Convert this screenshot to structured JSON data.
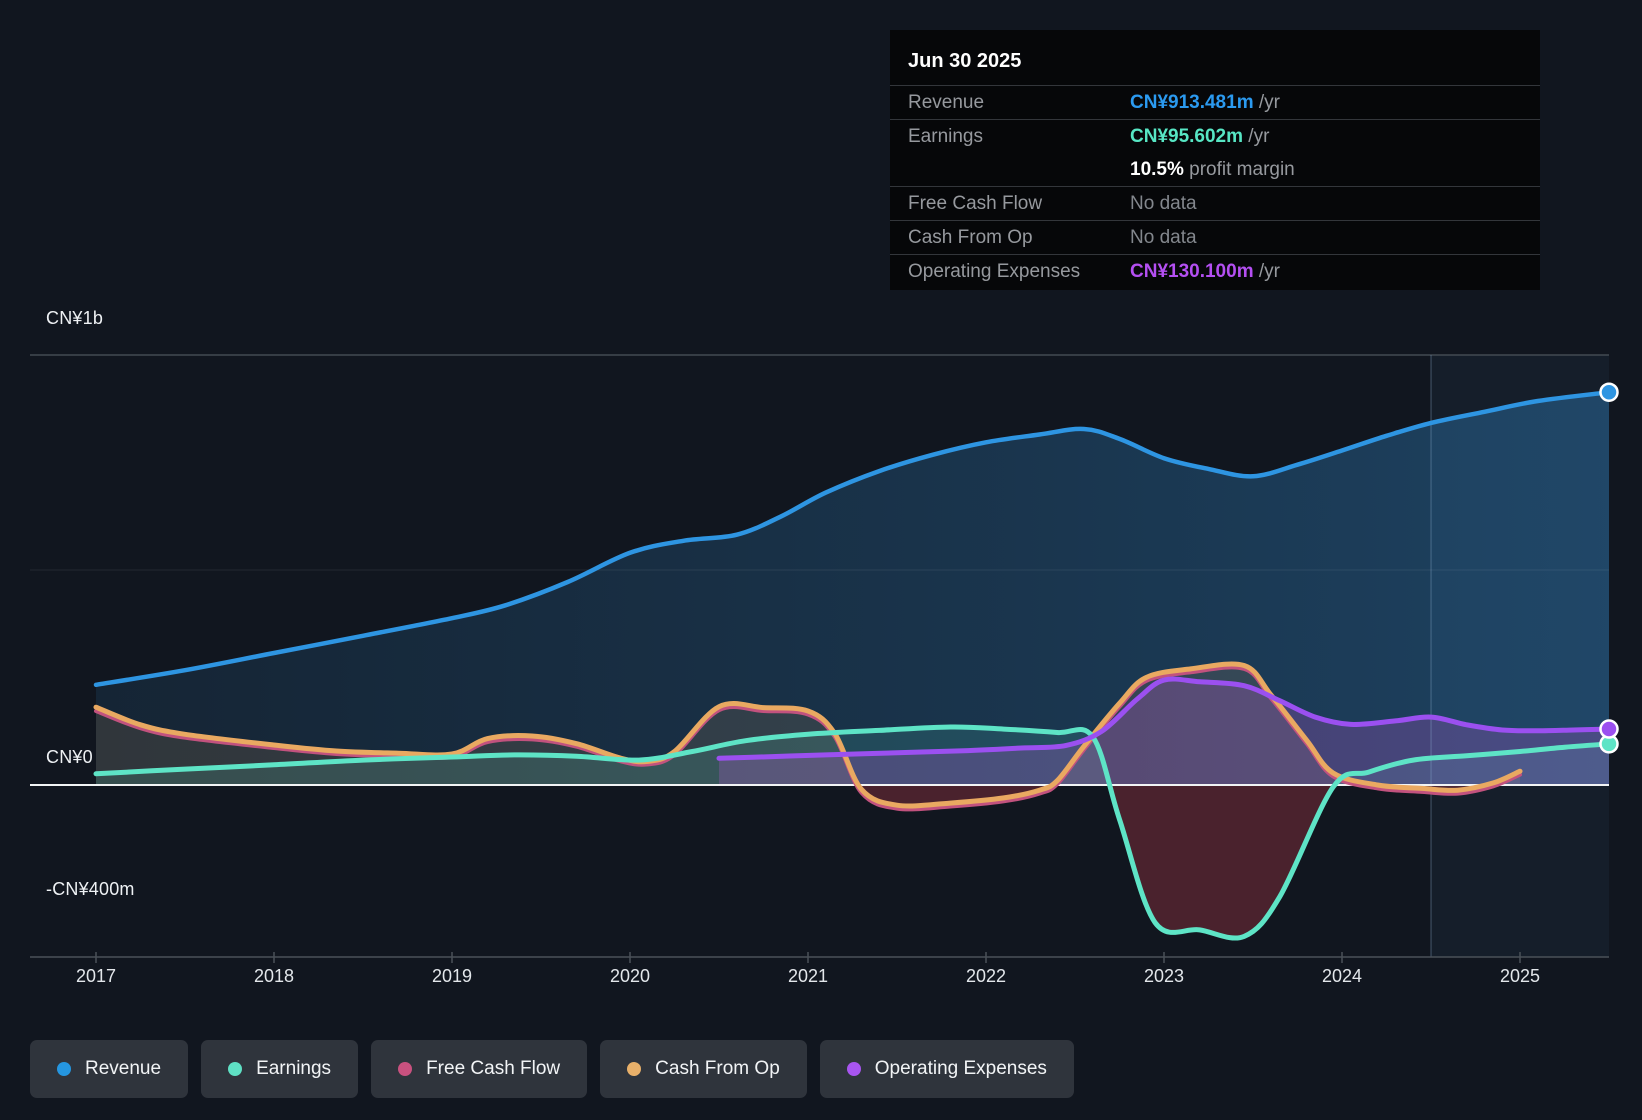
{
  "tooltip": {
    "date": "Jun 30 2025",
    "rows": [
      {
        "label": "Revenue",
        "value": "CN¥913.481m",
        "suffix": " /yr",
        "value_color": "#2b9af0"
      },
      {
        "label": "Earnings",
        "value": "CN¥95.602m",
        "suffix": " /yr",
        "value_color": "#57e6c4",
        "sub_value": "10.5%",
        "sub_text": " profit margin"
      },
      {
        "label": "Free Cash Flow",
        "value": "No data",
        "suffix": "",
        "value_color": ""
      },
      {
        "label": "Cash From Op",
        "value": "No data",
        "suffix": "",
        "value_color": ""
      },
      {
        "label": "Operating Expenses",
        "value": "CN¥130.100m",
        "suffix": " /yr",
        "value_color": "#b44ff2"
      }
    ]
  },
  "y_axis": {
    "labels": [
      "CN¥1b",
      "CN¥0",
      "-CN¥400m"
    ],
    "label_values": [
      1000,
      0,
      -400
    ]
  },
  "x_axis": {
    "years": [
      "2017",
      "2018",
      "2019",
      "2020",
      "2021",
      "2022",
      "2023",
      "2024",
      "2025"
    ]
  },
  "legend": [
    {
      "label": "Revenue",
      "color": "#2596e0"
    },
    {
      "label": "Earnings",
      "color": "#5fe0c4"
    },
    {
      "label": "Free Cash Flow",
      "color": "#c9517f"
    },
    {
      "label": "Cash From Op",
      "color": "#e8b06a"
    },
    {
      "label": "Operating Expenses",
      "color": "#a855f0"
    }
  ],
  "chart_data": {
    "type": "area",
    "title": "Earnings and revenue history",
    "unit": "CN¥ millions",
    "x_range": [
      2017,
      2025.5
    ],
    "y_range": [
      -400,
      1000
    ],
    "gridline_values": [
      1000,
      500,
      0
    ],
    "axis_bottom_value": -400,
    "divider_x": 2024.5,
    "series": [
      {
        "name": "Revenue",
        "color": "#2e95e2",
        "width": 4.5,
        "marker_end": true,
        "fill_gradient": [
          "rgba(38,96,140,0.20)",
          "rgba(44,120,178,0.33)",
          "rgba(48,132,196,0.40)"
        ],
        "points": [
          [
            2017,
            233
          ],
          [
            2017.5,
            267
          ],
          [
            2018,
            307
          ],
          [
            2018.5,
            347
          ],
          [
            2019,
            388
          ],
          [
            2019.3,
            418
          ],
          [
            2019.65,
            472
          ],
          [
            2020,
            540
          ],
          [
            2020.3,
            568
          ],
          [
            2020.6,
            582
          ],
          [
            2020.85,
            625
          ],
          [
            2021.1,
            680
          ],
          [
            2021.4,
            730
          ],
          [
            2021.7,
            768
          ],
          [
            2022,
            797
          ],
          [
            2022.3,
            815
          ],
          [
            2022.55,
            828
          ],
          [
            2022.75,
            805
          ],
          [
            2023,
            760
          ],
          [
            2023.25,
            735
          ],
          [
            2023.5,
            718
          ],
          [
            2023.75,
            745
          ],
          [
            2024,
            778
          ],
          [
            2024.25,
            812
          ],
          [
            2024.5,
            842
          ],
          [
            2024.8,
            868
          ],
          [
            2025.1,
            893
          ],
          [
            2025.5,
            913.481
          ]
        ]
      },
      {
        "name": "Free Cash Flow",
        "color": "#c2527e",
        "width": 4,
        "points": [
          [
            2017,
            172
          ],
          [
            2017.25,
            132
          ],
          [
            2017.5,
            110
          ],
          [
            2018,
            86
          ],
          [
            2018.35,
            72
          ],
          [
            2018.7,
            67
          ],
          [
            2019,
            65
          ],
          [
            2019.2,
            100
          ],
          [
            2019.45,
            106
          ],
          [
            2019.7,
            89
          ],
          [
            2019.95,
            55
          ],
          [
            2020.1,
            48
          ],
          [
            2020.25,
            70
          ],
          [
            2020.5,
            174
          ],
          [
            2020.75,
            172
          ],
          [
            2021,
            164
          ],
          [
            2021.15,
            112
          ],
          [
            2021.3,
            -18
          ],
          [
            2021.5,
            -55
          ],
          [
            2021.8,
            -50
          ],
          [
            2022.1,
            -38
          ],
          [
            2022.3,
            -20
          ],
          [
            2022.4,
            2
          ],
          [
            2022.55,
            82
          ],
          [
            2022.75,
            182
          ],
          [
            2022.9,
            242
          ],
          [
            2023.15,
            262
          ],
          [
            2023.45,
            270
          ],
          [
            2023.6,
            202
          ],
          [
            2023.8,
            97
          ],
          [
            2023.95,
            20
          ],
          [
            2024.2,
            -8
          ],
          [
            2024.45,
            -16
          ],
          [
            2024.65,
            -20
          ],
          [
            2024.85,
            -3
          ],
          [
            2025,
            24
          ]
        ]
      },
      {
        "name": "Cash From Op",
        "color": "#e9a961",
        "width": 5,
        "fill_positive": "rgba(233,169,97,0.13)",
        "fill_negative": "rgba(190,60,75,0.33)",
        "points": [
          [
            2017,
            181
          ],
          [
            2017.25,
            140
          ],
          [
            2017.5,
            118
          ],
          [
            2018,
            93
          ],
          [
            2018.35,
            79
          ],
          [
            2018.7,
            74
          ],
          [
            2019,
            72
          ],
          [
            2019.2,
            108
          ],
          [
            2019.45,
            114
          ],
          [
            2019.7,
            96
          ],
          [
            2019.95,
            62
          ],
          [
            2020.1,
            55
          ],
          [
            2020.25,
            78
          ],
          [
            2020.5,
            182
          ],
          [
            2020.75,
            180
          ],
          [
            2021,
            172
          ],
          [
            2021.15,
            120
          ],
          [
            2021.3,
            -10
          ],
          [
            2021.5,
            -47
          ],
          [
            2021.8,
            -42
          ],
          [
            2022.1,
            -30
          ],
          [
            2022.3,
            -12
          ],
          [
            2022.4,
            10
          ],
          [
            2022.55,
            90
          ],
          [
            2022.75,
            190
          ],
          [
            2022.9,
            250
          ],
          [
            2023.15,
            270
          ],
          [
            2023.45,
            278
          ],
          [
            2023.6,
            210
          ],
          [
            2023.8,
            105
          ],
          [
            2023.95,
            28
          ],
          [
            2024.2,
            0
          ],
          [
            2024.45,
            -8
          ],
          [
            2024.65,
            -12
          ],
          [
            2024.85,
            5
          ],
          [
            2025,
            32
          ]
        ]
      },
      {
        "name": "Earnings",
        "color": "#5ee4c6",
        "width": 5,
        "marker_end": true,
        "fill_positive": "rgba(95,228,198,0.14)",
        "fill_negative": "rgba(190,60,75,0.33)",
        "points": [
          [
            2017,
            26
          ],
          [
            2017.5,
            37
          ],
          [
            2018,
            47
          ],
          [
            2018.5,
            58
          ],
          [
            2019,
            65
          ],
          [
            2019.35,
            70
          ],
          [
            2019.7,
            67
          ],
          [
            2020.05,
            58
          ],
          [
            2020.35,
            78
          ],
          [
            2020.65,
            103
          ],
          [
            2021,
            118
          ],
          [
            2021.4,
            127
          ],
          [
            2021.8,
            135
          ],
          [
            2022.1,
            130
          ],
          [
            2022.4,
            122
          ],
          [
            2022.6,
            112
          ],
          [
            2022.75,
            -80
          ],
          [
            2022.95,
            -320
          ],
          [
            2023.2,
            -337
          ],
          [
            2023.45,
            -352
          ],
          [
            2023.65,
            -260
          ],
          [
            2023.95,
            -5
          ],
          [
            2024.15,
            30
          ],
          [
            2024.4,
            58
          ],
          [
            2024.7,
            68
          ],
          [
            2025,
            78
          ],
          [
            2025.25,
            88
          ],
          [
            2025.5,
            95.602
          ]
        ]
      },
      {
        "name": "Operating Expenses",
        "color": "#9b50f0",
        "width": 5,
        "marker_end": true,
        "fill_positive": "rgba(180,90,205,0.28)",
        "points": [
          [
            2020.5,
            62
          ],
          [
            2020.8,
            66
          ],
          [
            2021.1,
            70
          ],
          [
            2021.5,
            75
          ],
          [
            2021.9,
            80
          ],
          [
            2022.2,
            86
          ],
          [
            2022.45,
            92
          ],
          [
            2022.65,
            125
          ],
          [
            2022.85,
            200
          ],
          [
            2023,
            244
          ],
          [
            2023.2,
            240
          ],
          [
            2023.45,
            231
          ],
          [
            2023.65,
            196
          ],
          [
            2023.85,
            158
          ],
          [
            2024.05,
            141
          ],
          [
            2024.3,
            149
          ],
          [
            2024.5,
            158
          ],
          [
            2024.7,
            140
          ],
          [
            2024.9,
            128
          ],
          [
            2025.1,
            126
          ],
          [
            2025.3,
            128
          ],
          [
            2025.5,
            130.1
          ]
        ]
      }
    ],
    "legend_position": "bottom",
    "grid": true
  }
}
